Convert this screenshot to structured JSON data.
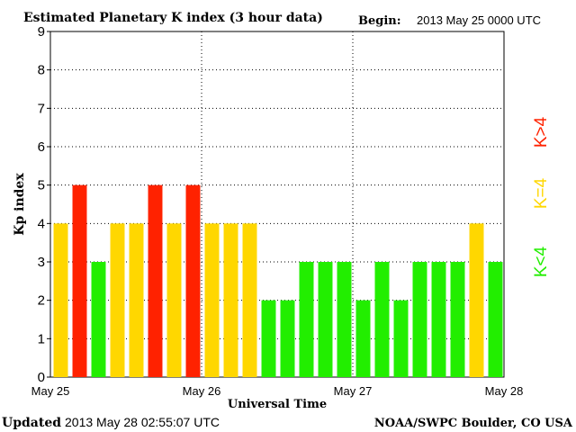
{
  "header": {
    "title": "Estimated Planetary K index (3 hour data)",
    "begin_label": "Begin:",
    "begin_value": "2013 May 25 0000 UTC"
  },
  "footer": {
    "updated_label": "Updated",
    "updated_value": "2013 May 28 02:55:07 UTC",
    "source": "NOAA/SWPC Boulder, CO USA"
  },
  "legend": {
    "high": "K>4",
    "equal": "K=4",
    "low": "K<4"
  },
  "colors": {
    "low": "#22ee00",
    "equal": "#ffd700",
    "high": "#ff2200",
    "grid": "#000000",
    "background": "#ffffff"
  },
  "chart_data": {
    "type": "bar",
    "xlabel": "Universal Time",
    "ylabel": "Kp index",
    "ylim": [
      0,
      9
    ],
    "yticks": [
      0,
      1,
      2,
      3,
      4,
      5,
      6,
      7,
      8,
      9
    ],
    "x_tick_labels": [
      "May 25",
      "May 26",
      "May 27",
      "May 28"
    ],
    "days": 3,
    "intervals_per_day": 8,
    "values": [
      4,
      5,
      3,
      4,
      4,
      5,
      4,
      5,
      4,
      4,
      4,
      2,
      2,
      3,
      3,
      3,
      2,
      3,
      2,
      3,
      3,
      3,
      4,
      3
    ],
    "grid": "dotted"
  }
}
